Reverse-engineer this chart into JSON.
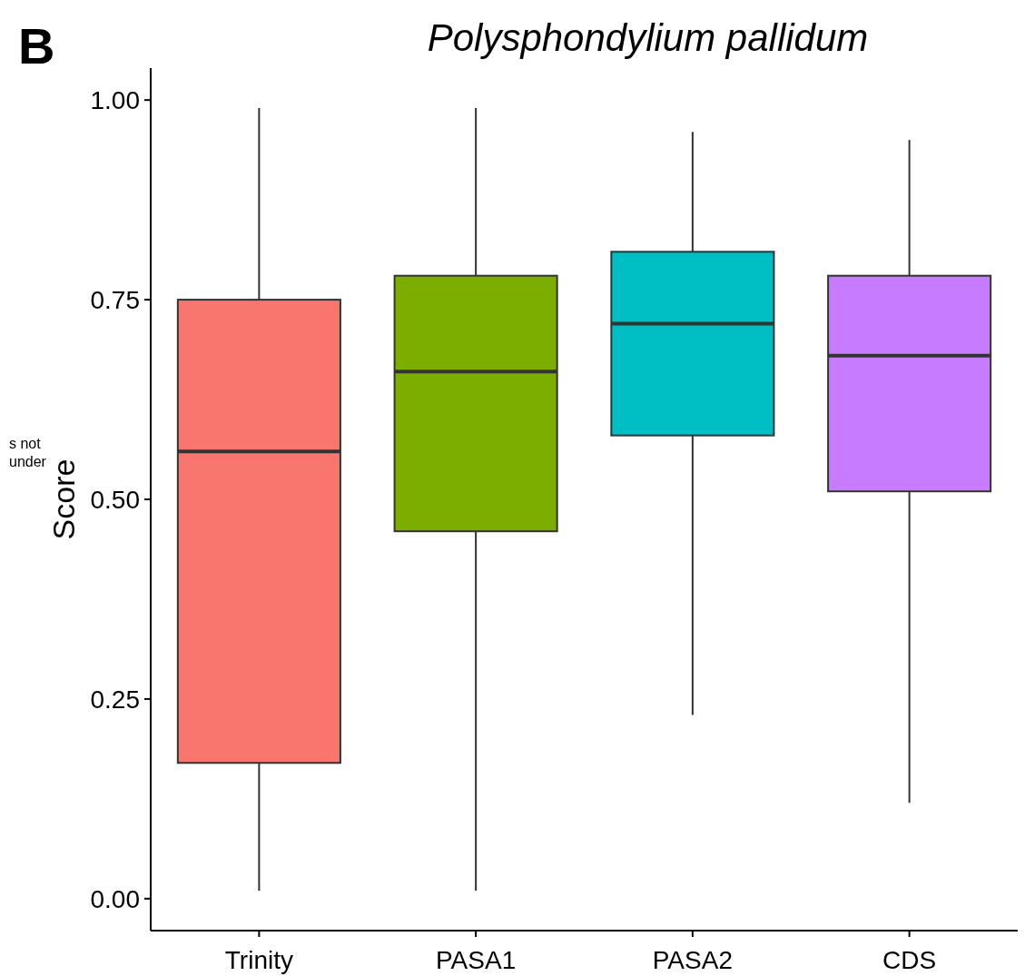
{
  "chart_data": {
    "type": "box",
    "title": "Polysphondylium pallidum",
    "ylabel": "Score",
    "categories": [
      "Trinity",
      "PASA1",
      "PASA2",
      "CDS"
    ],
    "colors": [
      "#f8766d",
      "#7cae00",
      "#00bfc4",
      "#c77cff"
    ],
    "boxes": [
      {
        "low": 0.01,
        "q1": 0.17,
        "median": 0.56,
        "q3": 0.75,
        "high": 0.99
      },
      {
        "low": 0.01,
        "q1": 0.46,
        "median": 0.66,
        "q3": 0.78,
        "high": 0.99
      },
      {
        "low": 0.23,
        "q1": 0.58,
        "median": 0.72,
        "q3": 0.81,
        "high": 0.96
      },
      {
        "low": 0.12,
        "q1": 0.51,
        "median": 0.68,
        "q3": 0.78,
        "high": 0.95
      }
    ],
    "ylim": [
      -0.04,
      1.04
    ],
    "yticks": [
      {
        "value": 0,
        "label": "0.00"
      },
      {
        "value": 0.25,
        "label": "0.25"
      },
      {
        "value": 0.5,
        "label": "0.50"
      },
      {
        "value": 0.75,
        "label": "0.75"
      },
      {
        "value": 1,
        "label": "1.00"
      }
    ],
    "grid": false,
    "annotations": [
      "B",
      "s not",
      "under"
    ]
  }
}
